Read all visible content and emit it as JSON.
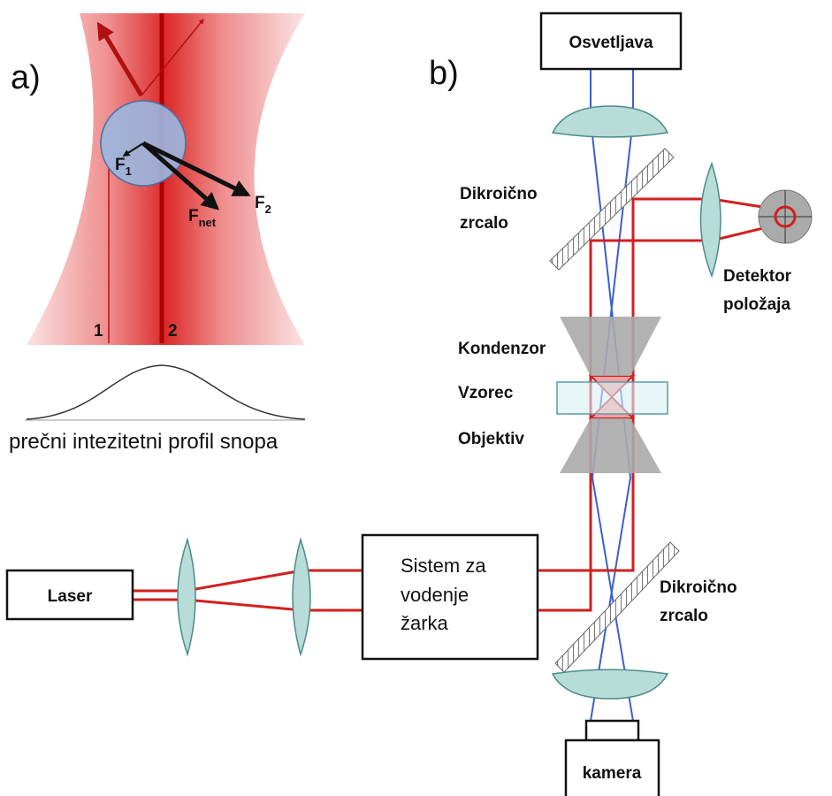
{
  "panel_a": {
    "label": "a)",
    "forces": [
      {
        "symbol": "F",
        "subscript": "1"
      },
      {
        "symbol": "F",
        "subscript": "2"
      },
      {
        "symbol": "F",
        "subscript": "net"
      }
    ],
    "rays": [
      "1",
      "2"
    ],
    "profile_caption": "prečni intezitetni profil snopa"
  },
  "panel_b": {
    "label": "b)",
    "illumination": "Osvetljava",
    "mirror_top": [
      "Dikroično",
      "zrcalo"
    ],
    "detector": [
      "Detektor",
      "položaja"
    ],
    "condenser": "Kondenzor",
    "sample": "Vzorec",
    "objective": "Objektiv",
    "laser": "Laser",
    "beam_steering": [
      "Sistem za",
      "vodenje",
      "žarka"
    ],
    "mirror_bottom": [
      "Dikroično",
      "zrcalo"
    ],
    "camera": "kamera"
  }
}
